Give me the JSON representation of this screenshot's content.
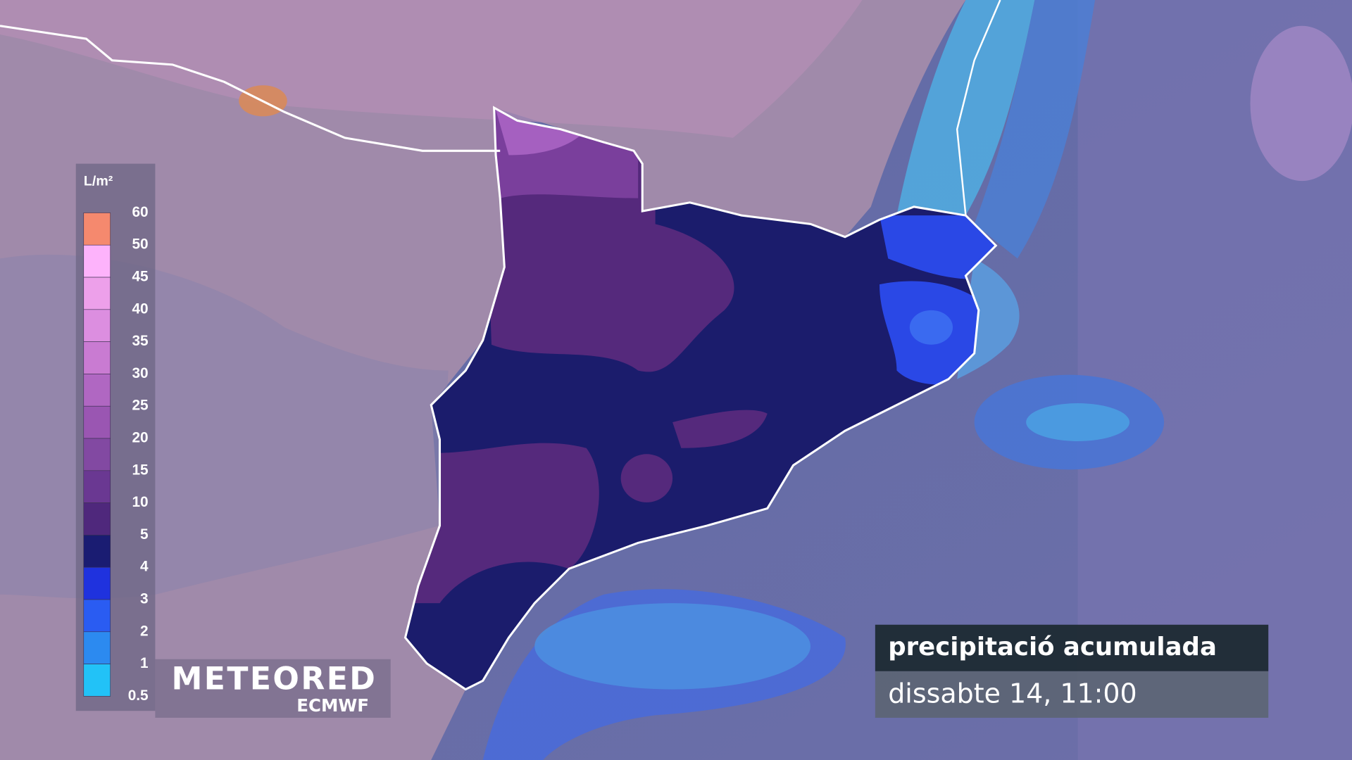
{
  "legend": {
    "unit": "L/m²",
    "labels": [
      60,
      50,
      45,
      40,
      35,
      30,
      25,
      20,
      15,
      10,
      5,
      4,
      3,
      2,
      1,
      0.5
    ],
    "colors": [
      "#f5896e",
      "#fdb3fb",
      "#eda0ea",
      "#dc8ee0",
      "#c97bd2",
      "#b067c2",
      "#9a56b2",
      "#8249a2",
      "#6a3892",
      "#4f287c",
      "#1a1c72",
      "#1f32de",
      "#2a5cf2",
      "#2c8af0",
      "#22c2f7"
    ],
    "bottom_color": "#5cd8fb"
  },
  "brand": {
    "name": "METEORED",
    "source": "ECMWF"
  },
  "caption": {
    "title": "precipitació acumulada",
    "subtitle": "dissabte 14, 11:00"
  }
}
